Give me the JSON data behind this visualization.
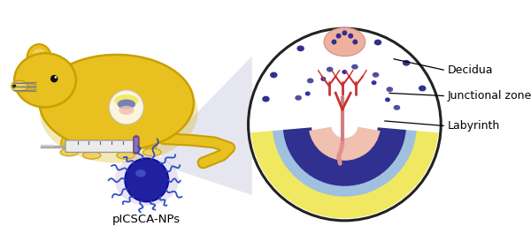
{
  "fig_width": 6.0,
  "fig_height": 2.82,
  "dpi": 100,
  "bg_color": "#ffffff",
  "labels": {
    "decidua": "Decidua",
    "junctional": "Junctional zone",
    "labyrinth": "Labyrinth",
    "nanoparticle": "pICSCA-NPs"
  },
  "colors": {
    "mouse_body": "#E8C020",
    "mouse_outline": "#C8A000",
    "mouse_shadow": "#F0D060",
    "decidua_yellow": "#F0E860",
    "decidua_blue": "#8090D0",
    "junctional_dark": "#303090",
    "labyrinth_pink": "#F0C0B0",
    "labyrinth_red": "#CC3030",
    "fetus_skin": "#F5C8B8",
    "circle_bg": "#ffffff",
    "np_body": "#2020A0",
    "np_tendrils": "#3050C0",
    "np_highlight": "#4060D0",
    "syringe_gray": "#D0D0D0",
    "syringe_purple": "#8060A0",
    "beam_color": "#C8C8E8",
    "annotation_line": "#000000",
    "text_color": "#000000",
    "placenta_top_pink": "#F0B0A0"
  }
}
